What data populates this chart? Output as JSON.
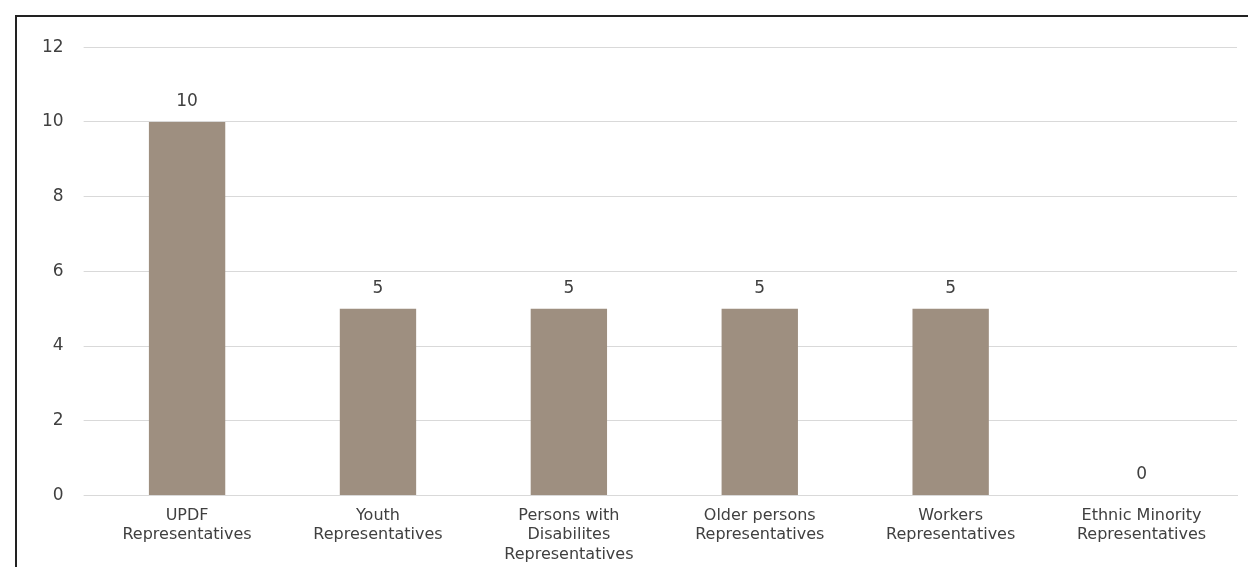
{
  "chart_data": {
    "type": "bar",
    "categories": [
      "UPDF Representatives",
      "Youth Representatives",
      "Persons with Disabilites Representatives",
      "Older persons Representatives",
      "Workers Representatives",
      "Ethnic Minority Representatives"
    ],
    "values": [
      10,
      5,
      5,
      5,
      5,
      0
    ],
    "color": "#9e8f80",
    "ylim": [
      0,
      12
    ],
    "yticks": [
      0,
      2,
      4,
      6,
      8,
      10,
      12
    ],
    "grid": "y",
    "data_labels": true,
    "legend": false
  }
}
